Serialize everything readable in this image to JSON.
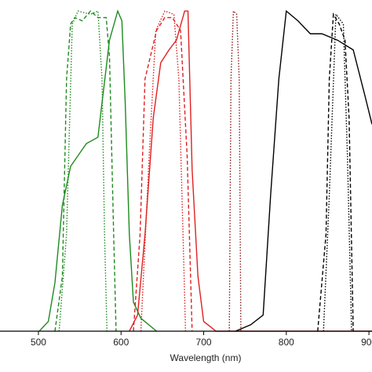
{
  "chart_data": {
    "type": "line",
    "xlabel": "Wavelength (nm)",
    "xlim": [
      453.5,
      903.7
    ],
    "xticks": [
      500,
      600,
      700,
      800,
      900
    ],
    "ylim": [
      0,
      100
    ],
    "series": [
      {
        "color": "#1e8a1e",
        "style": "solid",
        "x": [
          501,
          512,
          520,
          529,
          539,
          558,
          572,
          586,
          596,
          601,
          605,
          610,
          615,
          624,
          643
        ],
        "values": [
          0,
          3,
          15,
          39,
          51,
          58,
          60,
          90,
          99,
          96,
          71,
          30,
          9,
          4,
          0
        ]
      },
      {
        "color": "#1e8a1e",
        "style": "dashed",
        "x": [
          520,
          529,
          534,
          539,
          544,
          553,
          563,
          572,
          582,
          586,
          591,
          594
        ],
        "values": [
          0,
          17,
          78,
          95,
          97,
          96,
          99,
          97,
          97,
          85,
          30,
          0
        ]
      },
      {
        "color": "#1e8a1e",
        "style": "dotted",
        "x": [
          525,
          534,
          541,
          548,
          563,
          572,
          577,
          580,
          583
        ],
        "values": [
          0,
          30,
          95,
          99,
          98,
          99,
          78,
          30,
          0
        ]
      },
      {
        "color": "#e02020",
        "style": "solid",
        "x": [
          610,
          620,
          629,
          639,
          648,
          658,
          667,
          677,
          681,
          686,
          693,
          700,
          715,
          903.7
        ],
        "values": [
          0,
          5,
          30,
          66,
          83,
          87,
          90,
          99,
          99,
          50,
          17,
          3,
          0,
          0
        ]
      },
      {
        "color": "#e02020",
        "style": "dashed",
        "x": [
          615,
          623,
          629,
          643,
          653,
          662,
          672,
          680,
          686
        ],
        "values": [
          0,
          30,
          78,
          93,
          97,
          97,
          93,
          54,
          0
        ]
      },
      {
        "color": "#e02020",
        "style": "dotted",
        "x": [
          624,
          634,
          642,
          653,
          664,
          670,
          675,
          678
        ],
        "values": [
          0,
          54,
          93,
          99,
          98,
          78,
          30,
          0
        ]
      },
      {
        "color": "#8b1a1a",
        "style": "dotted",
        "x": [
          731,
          733,
          736,
          740,
          743,
          745
        ],
        "values": [
          0,
          78,
          99,
          98,
          78,
          0
        ]
      },
      {
        "color": "#000000",
        "style": "solid",
        "x": [
          738.4,
          757,
          772,
          781,
          791,
          800,
          814,
          829,
          843,
          862,
          881,
          895,
          903.7
        ],
        "values": [
          0,
          2,
          5,
          42,
          78,
          99,
          96,
          92,
          92,
          90,
          87,
          73,
          64
        ]
      },
      {
        "color": "#000000",
        "style": "dashed",
        "x": [
          838,
          848,
          852,
          857,
          864,
          871,
          876,
          881
        ],
        "values": [
          0,
          30,
          78,
          98,
          95,
          90,
          66,
          0
        ]
      },
      {
        "color": "#000000",
        "style": "dotted",
        "x": [
          845,
          852,
          860,
          869,
          874,
          879
        ],
        "values": [
          0,
          42,
          98,
          95,
          54,
          0
        ]
      }
    ]
  }
}
